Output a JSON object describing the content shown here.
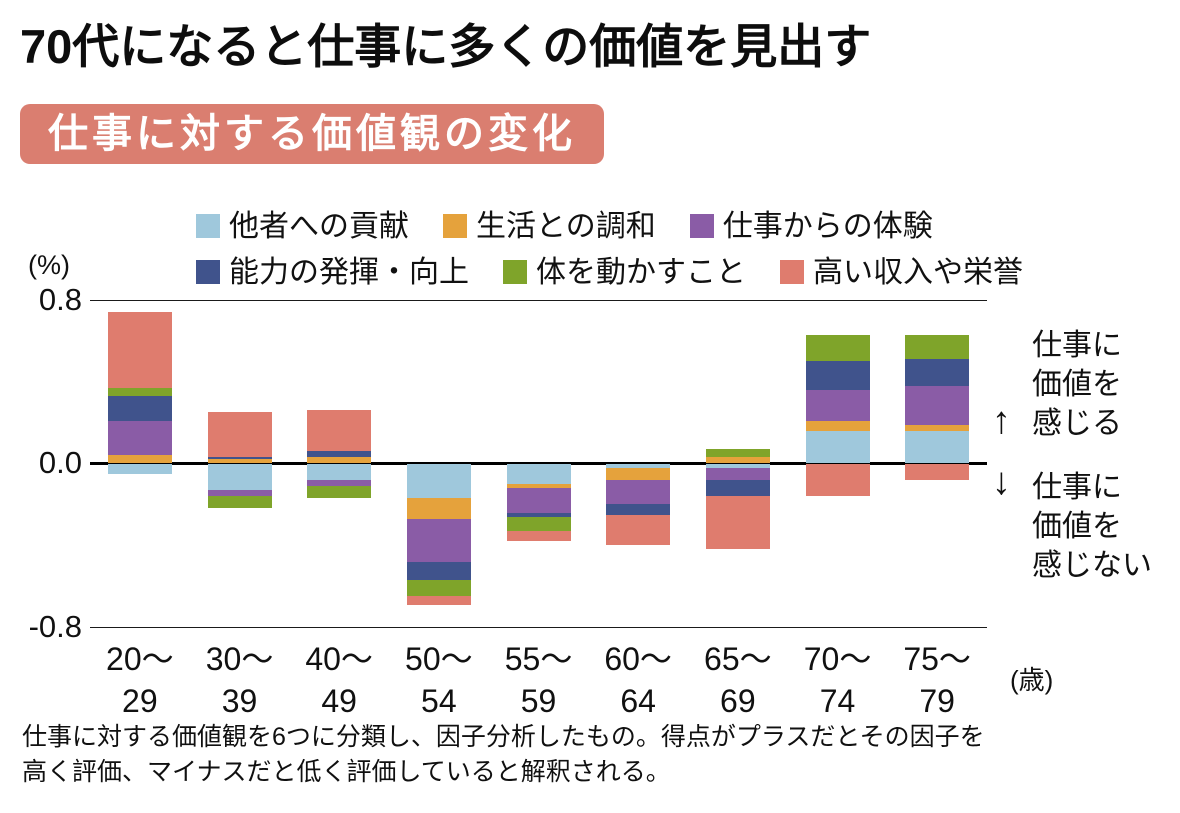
{
  "title": "70代になると仕事に多くの価値を見出す",
  "badge": "仕事に対する価値観の変化",
  "axis": {
    "percent_label": "(%)",
    "age_label": "(歳)",
    "ytick_labels": [
      "0.8",
      "0.0",
      "-0.8"
    ]
  },
  "annotations": {
    "up_arrow": "↑",
    "down_arrow": "↓",
    "feel_value_line1": "仕事に",
    "feel_value_line2": "価値を",
    "feel_value_line3": "感じる",
    "not_feel_value_line1": "仕事に",
    "not_feel_value_line2": "価値を",
    "not_feel_value_line3": "感じない"
  },
  "footnote": {
    "line1": "仕事に対する価値観を6つに分類し、因子分析したもの。得点がプラスだとその因子を",
    "line2": "高く評価、マイナスだと低く評価していると解釈される。"
  },
  "chart_data": {
    "type": "bar",
    "stacked": true,
    "title": "仕事に対する価値観の変化",
    "ylabel": "(%)",
    "xlabel": "(歳)",
    "ylim": [
      -0.8,
      0.8
    ],
    "yticks": [
      0.8,
      0.0,
      -0.8
    ],
    "grid": false,
    "legend_position": "top",
    "categories": [
      {
        "top": "20〜",
        "bottom": "29"
      },
      {
        "top": "30〜",
        "bottom": "39"
      },
      {
        "top": "40〜",
        "bottom": "49"
      },
      {
        "top": "50〜",
        "bottom": "54"
      },
      {
        "top": "55〜",
        "bottom": "59"
      },
      {
        "top": "60〜",
        "bottom": "64"
      },
      {
        "top": "65〜",
        "bottom": "69"
      },
      {
        "top": "70〜",
        "bottom": "74"
      },
      {
        "top": "75〜",
        "bottom": "79"
      }
    ],
    "series": [
      {
        "name": "他者への貢献",
        "color": "#9fc8dc",
        "values": [
          -0.05,
          -0.13,
          -0.08,
          -0.17,
          -0.1,
          -0.02,
          -0.02,
          0.16,
          0.16
        ]
      },
      {
        "name": "生活との調和",
        "color": "#e5a23c",
        "values": [
          0.04,
          0.02,
          0.03,
          -0.1,
          -0.02,
          -0.06,
          0.03,
          0.05,
          0.03
        ]
      },
      {
        "name": "仕事からの体験",
        "color": "#8a5ca6",
        "values": [
          0.17,
          -0.03,
          -0.03,
          -0.21,
          -0.12,
          -0.12,
          -0.06,
          0.15,
          0.19
        ]
      },
      {
        "name": "能力の発揮・向上",
        "color": "#40538c",
        "values": [
          0.12,
          0.01,
          0.03,
          -0.09,
          -0.02,
          -0.05,
          -0.08,
          0.14,
          0.13
        ]
      },
      {
        "name": "体を動かすこと",
        "color": "#7fa42a",
        "values": [
          0.04,
          -0.06,
          -0.06,
          -0.08,
          -0.07,
          0.0,
          0.04,
          0.13,
          0.12
        ]
      },
      {
        "name": "高い収入や栄誉",
        "color": "#df7c6e",
        "values": [
          0.37,
          0.22,
          0.2,
          -0.04,
          -0.05,
          -0.15,
          -0.26,
          -0.16,
          -0.08
        ]
      }
    ]
  }
}
